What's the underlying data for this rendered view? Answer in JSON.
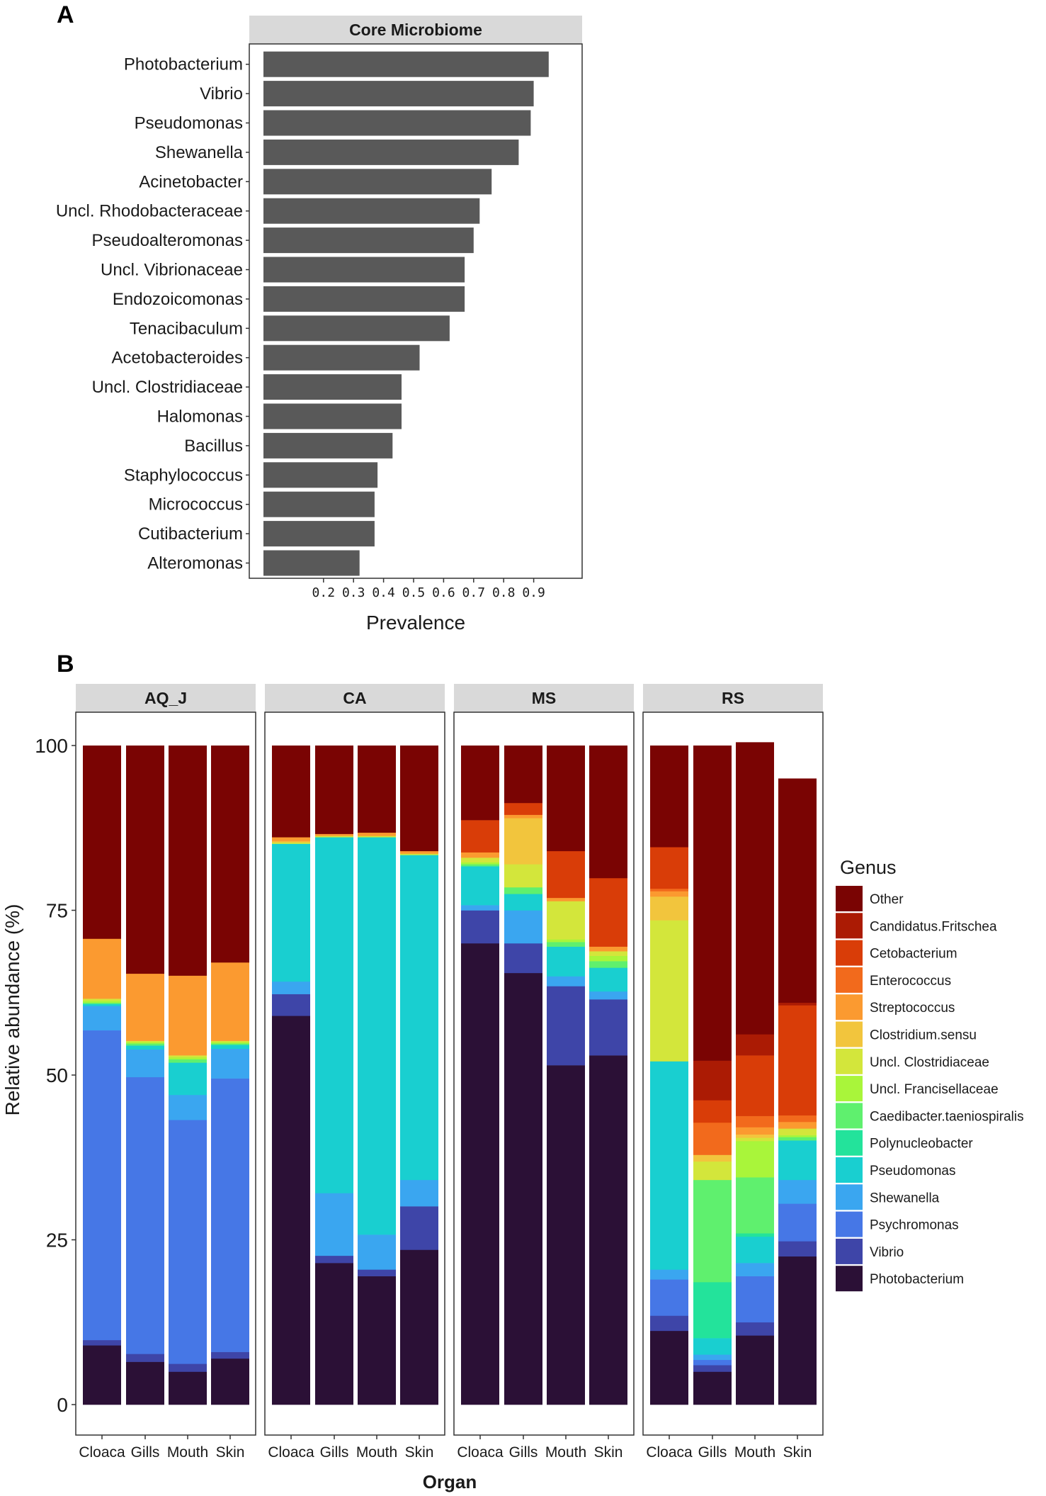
{
  "chart_data": [
    {
      "panel": "A",
      "type": "bar",
      "orientation": "horizontal",
      "strip_title": "Core Microbiome",
      "categories": [
        "Photobacterium",
        "Vibrio",
        "Pseudomonas",
        "Shewanella",
        "Acinetobacter",
        "Uncl. Rhodobacteraceae",
        "Pseudoalteromonas",
        "Uncl. Vibrionaceae",
        "Endozoicomonas",
        "Tenacibaculum",
        "Acetobacteroides",
        "Uncl. Clostridiaceae",
        "Halomonas",
        "Bacillus",
        "Staphylococcus",
        "Micrococcus",
        "Cutibacterium",
        "Alteromonas"
      ],
      "values": [
        0.95,
        0.9,
        0.89,
        0.85,
        0.76,
        0.72,
        0.7,
        0.67,
        0.67,
        0.62,
        0.52,
        0.46,
        0.46,
        0.43,
        0.38,
        0.37,
        0.37,
        0.32
      ],
      "xlabel": "Prevalence",
      "xticks": [
        "0.2",
        "0.3",
        "0.4",
        "0.5",
        "0.6",
        "0.7",
        "0.8",
        "0.9"
      ],
      "xlim": [
        0.0,
        1.05
      ]
    },
    {
      "panel": "B",
      "type": "stacked_bar",
      "facets": [
        "AQ_J",
        "CA",
        "MS",
        "RS"
      ],
      "categories": [
        "Cloaca",
        "Gills",
        "Mouth",
        "Skin"
      ],
      "xlabel": "Organ",
      "ylabel": "Relative abundance (%)",
      "ylim": [
        0,
        100
      ],
      "yticks": [
        "0",
        "25",
        "50",
        "75",
        "100"
      ],
      "legend_title": "Genus",
      "genera": [
        "Photobacterium",
        "Vibrio",
        "Psychromonas",
        "Shewanella",
        "Pseudomonas",
        "Polynucleobacter",
        "Caedibacter.taeniospiralis",
        "Uncl. Francisellaceae",
        "Uncl. Clostridiaceae",
        "Clostridium.sensu",
        "Streptococcus",
        "Enterococcus",
        "Cetobacterium",
        "Candidatus.Fritschea",
        "Other"
      ],
      "legend_order": [
        "Other",
        "Candidatus.Fritschea",
        "Cetobacterium",
        "Enterococcus",
        "Streptococcus",
        "Clostridium.sensu",
        "Uncl. Clostridiaceae",
        "Uncl. Francisellaceae",
        "Caedibacter.taeniospiralis",
        "Polynucleobacter",
        "Pseudomonas",
        "Shewanella",
        "Psychromonas",
        "Vibrio",
        "Photobacterium"
      ],
      "colors": [
        "#2b1036",
        "#3e45a8",
        "#4677e6",
        "#3aa6f0",
        "#19cfd0",
        "#23e39b",
        "#5ff06e",
        "#a9f53a",
        "#d3e63b",
        "#f2c53d",
        "#fb9a30",
        "#f26a1c",
        "#d93d08",
        "#ab1b04",
        "#7a0403"
      ],
      "data": {
        "AQ_J": {
          "Cloaca": [
            9.0,
            0.8,
            47.0,
            3.7,
            0.3,
            0.0,
            0.2,
            0.3,
            0.3,
            0.0,
            9.1,
            0.0,
            0.0,
            0.0,
            29.3
          ],
          "Gills": [
            6.5,
            1.2,
            42.0,
            4.2,
            0.6,
            0.0,
            0.3,
            0.2,
            0.2,
            0.0,
            10.2,
            0.0,
            0.0,
            0.0,
            34.6
          ],
          "Mouth": [
            5.0,
            1.2,
            37.0,
            3.8,
            4.9,
            0.0,
            0.5,
            0.3,
            0.3,
            0.0,
            12.1,
            0.0,
            0.0,
            0.0,
            34.9
          ],
          "Skin": [
            7.0,
            1.0,
            41.5,
            4.5,
            0.6,
            0.0,
            0.2,
            0.2,
            0.2,
            0.0,
            11.9,
            0.0,
            0.0,
            0.0,
            32.9
          ]
        },
        "CA": {
          "Cloaca": [
            59.0,
            3.3,
            0.0,
            1.9,
            20.9,
            0.0,
            0.0,
            0.0,
            0.2,
            0.2,
            0.6,
            0.0,
            0.0,
            0.0,
            13.9
          ],
          "Gills": [
            21.5,
            1.1,
            0.0,
            9.5,
            54.0,
            0.0,
            0.0,
            0.0,
            0.2,
            0.0,
            0.3,
            0.0,
            0.0,
            0.0,
            13.4
          ],
          "Mouth": [
            19.5,
            1.0,
            0.0,
            5.3,
            60.3,
            0.0,
            0.0,
            0.0,
            0.2,
            0.0,
            0.5,
            0.0,
            0.0,
            0.0,
            13.2
          ],
          "Skin": [
            23.5,
            6.6,
            0.0,
            4.0,
            49.3,
            0.0,
            0.0,
            0.0,
            0.2,
            0.0,
            0.4,
            0.0,
            0.0,
            0.0,
            16.0
          ]
        },
        "MS": {
          "Cloaca": [
            70.0,
            5.0,
            0.0,
            0.8,
            5.9,
            0.0,
            0.3,
            0.3,
            0.7,
            0.0,
            0.8,
            0.0,
            4.9,
            0.0,
            11.3
          ],
          "Gills": [
            65.5,
            4.5,
            0.0,
            5.0,
            2.5,
            0.0,
            1.0,
            0.0,
            3.5,
            7.0,
            0.5,
            0.0,
            1.8,
            0.0,
            8.7
          ],
          "Mouth": [
            51.5,
            12.0,
            0.0,
            1.5,
            4.5,
            0.0,
            0.7,
            0.4,
            5.8,
            0.0,
            0.5,
            0.0,
            7.1,
            0.0,
            16.0
          ],
          "Skin": [
            53.0,
            8.5,
            0.0,
            1.2,
            3.6,
            0.0,
            1.0,
            0.8,
            0.7,
            0.0,
            0.7,
            0.0,
            10.4,
            0.0,
            20.1
          ]
        },
        "RS": {
          "Cloaca": [
            11.2,
            2.3,
            5.5,
            1.5,
            31.6,
            0.0,
            0.0,
            0.0,
            21.4,
            3.6,
            0.8,
            0.4,
            6.3,
            0.0,
            15.4
          ],
          "Gills": [
            5.0,
            1.0,
            0.8,
            0.8,
            2.5,
            8.5,
            15.5,
            0.0,
            2.8,
            1.0,
            0.0,
            4.9,
            3.4,
            6.0,
            47.8
          ],
          "Mouth": [
            10.5,
            2.0,
            7.0,
            2.0,
            4.0,
            0.5,
            8.5,
            5.5,
            0.5,
            0.5,
            1.1,
            1.7,
            9.2,
            3.2,
            44.3
          ],
          "Skin": [
            22.5,
            2.3,
            5.7,
            3.6,
            6.0,
            0.0,
            0.5,
            0.3,
            1.0,
            0.0,
            1.0,
            1.0,
            16.7,
            0.4,
            34.0
          ]
        }
      }
    }
  ]
}
